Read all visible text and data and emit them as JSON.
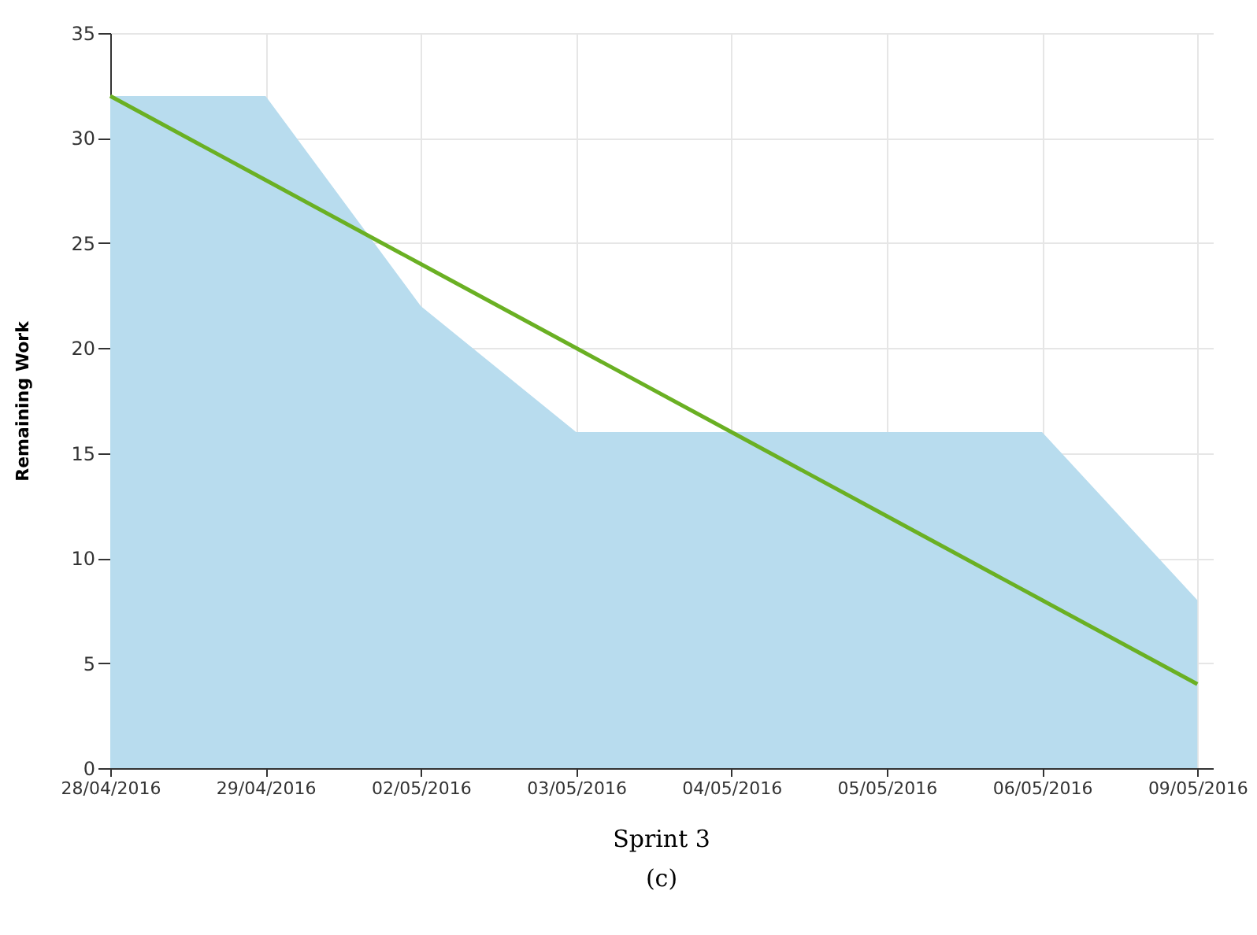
{
  "chart_data": {
    "type": "area",
    "title": "Sprint 3",
    "subtitle": "(c)",
    "ylabel": "Remaining Work",
    "categories": [
      "28/04/2016",
      "29/04/2016",
      "02/05/2016",
      "03/05/2016",
      "04/05/2016",
      "05/05/2016",
      "06/05/2016",
      "09/05/2016"
    ],
    "series": [
      {
        "color": "#b8dcee",
        "values": [
          32,
          32,
          22,
          16,
          16,
          16,
          16,
          8
        ]
      },
      {
        "type": "line",
        "color": "#6ab023",
        "values": [
          32,
          28,
          24,
          20,
          16,
          12,
          8,
          4
        ]
      }
    ],
    "ylim": [
      0,
      35
    ],
    "yticks": [
      0,
      5,
      10,
      15,
      20,
      25,
      30,
      35
    ],
    "grid": true
  }
}
